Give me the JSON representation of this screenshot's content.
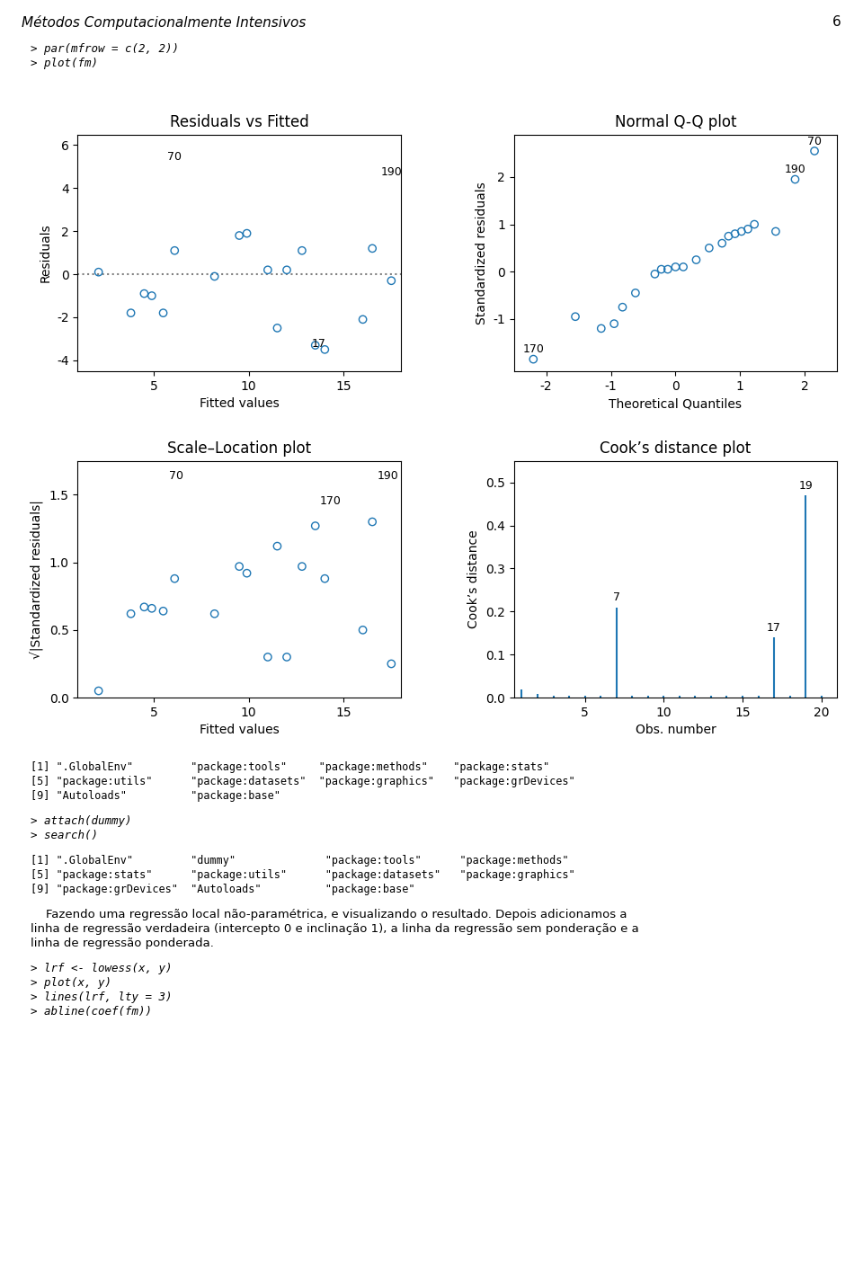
{
  "page": {
    "header_left": "Métodos Computacionalmente Intensivos",
    "header_right": "6",
    "text_above": [
      {
        "kind": "input",
        "lines": [
          "> par(mfrow = c(2, 2))",
          "> plot(fm)"
        ]
      }
    ],
    "text_below": [
      {
        "kind": "output",
        "lines": [
          "[1] \".GlobalEnv\"         \"package:tools\"     \"package:methods\"    \"package:stats\"",
          "[5] \"package:utils\"      \"package:datasets\"  \"package:graphics\"   \"package:grDevices\"",
          "[9] \"Autoloads\"          \"package:base\""
        ]
      },
      {
        "kind": "input",
        "lines": [
          "> attach(dummy)",
          "> search()"
        ]
      },
      {
        "kind": "output",
        "lines": [
          "[1] \".GlobalEnv\"         \"dummy\"              \"package:tools\"      \"package:methods\"",
          "[5] \"package:stats\"      \"package:utils\"      \"package:datasets\"   \"package:graphics\"",
          "[9] \"package:grDevices\"  \"Autoloads\"          \"package:base\""
        ]
      },
      {
        "kind": "paragraph",
        "lines": [
          "    Fazendo uma regressão local não-paramétrica, e visualizando o resultado. Depois adicionamos a",
          "linha de regressão verdadeira (intercepto 0 e inclinação 1), a linha da regressão sem ponderação e a",
          "linha de regressão ponderada."
        ]
      },
      {
        "kind": "input",
        "lines": [
          "> lrf <- lowess(x, y)",
          "> plot(x, y)",
          "> lines(lrf, lty = 3)",
          "> abline(coef(fm))"
        ]
      }
    ]
  },
  "chart_data": [
    {
      "type": "scatter",
      "title": "Residuals vs Fitted",
      "x_label": "Fitted values",
      "y_label": "Residuals",
      "x": [
        2.1,
        3.8,
        4.5,
        4.9,
        5.5,
        6.1,
        8.2,
        9.5,
        9.9,
        11.0,
        11.5,
        12.0,
        12.8,
        13.5,
        14.0,
        16.0,
        16.5,
        17.5
      ],
      "values": [
        0.1,
        -1.8,
        -0.9,
        -1.0,
        -1.8,
        1.1,
        -0.1,
        1.8,
        1.9,
        0.2,
        -2.5,
        0.2,
        1.1,
        -3.3,
        -3.5,
        -2.1,
        1.2,
        -0.3
      ],
      "xlim": [
        1,
        18
      ],
      "ylim": [
        -4.5,
        6.5
      ],
      "xticks": [
        5,
        10,
        15
      ],
      "yticks": [
        -4,
        -2,
        0,
        2,
        4,
        6
      ],
      "reference_line": {
        "y": 0
      },
      "annotations": [
        {
          "x": 6.1,
          "y": 5.0,
          "text": "70"
        },
        {
          "x": 17.5,
          "y": 4.3,
          "text": "190"
        },
        {
          "x": 13.7,
          "y": -3.7,
          "text": "17"
        }
      ]
    },
    {
      "type": "scatter",
      "title": "Normal Q-Q plot",
      "x_label": "Theoretical Quantiles",
      "y_label": "Standardized residuals",
      "x": [
        -2.2,
        -1.55,
        -1.15,
        -0.95,
        -0.82,
        -0.62,
        -0.32,
        -0.22,
        -0.12,
        0.0,
        0.12,
        0.32,
        0.52,
        0.72,
        0.82,
        0.92,
        1.02,
        1.12,
        1.22,
        1.55,
        1.85,
        2.15
      ],
      "values": [
        -1.85,
        -0.95,
        -1.2,
        -1.1,
        -0.75,
        -0.45,
        -0.05,
        0.05,
        0.05,
        0.1,
        0.1,
        0.25,
        0.5,
        0.6,
        0.75,
        0.8,
        0.85,
        0.9,
        1.0,
        0.85,
        1.95,
        2.55
      ],
      "xlim": [
        -2.5,
        2.5
      ],
      "ylim": [
        -2.1,
        2.9
      ],
      "xticks": [
        -2,
        -1,
        0,
        1,
        2
      ],
      "yticks": [
        -1,
        0,
        1,
        2
      ],
      "annotations": [
        {
          "x": -2.2,
          "y": -1.85,
          "text": "170"
        },
        {
          "x": 1.85,
          "y": 1.95,
          "text": "190"
        },
        {
          "x": 2.15,
          "y": 2.55,
          "text": "70"
        }
      ]
    },
    {
      "type": "scatter",
      "title": "Scale–Location plot",
      "x_label": "Fitted values",
      "y_label": "√|Standardized residuals|",
      "x": [
        2.1,
        3.8,
        4.5,
        4.9,
        5.5,
        6.1,
        8.2,
        9.5,
        9.9,
        11.0,
        11.5,
        12.0,
        12.8,
        13.5,
        14.0,
        16.0,
        16.5,
        17.5
      ],
      "values": [
        0.05,
        0.62,
        0.67,
        0.66,
        0.64,
        0.88,
        0.62,
        0.97,
        0.92,
        0.3,
        1.12,
        0.3,
        0.97,
        1.27,
        0.88,
        0.5,
        1.3,
        0.25
      ],
      "xlim": [
        1,
        18
      ],
      "ylim": [
        0.0,
        1.75
      ],
      "xticks": [
        5,
        10,
        15
      ],
      "yticks": [
        0.0,
        0.5,
        1.0,
        1.5
      ],
      "annotations": [
        {
          "x": 6.2,
          "y": 1.57,
          "text": "70"
        },
        {
          "x": 17.3,
          "y": 1.57,
          "text": "190"
        },
        {
          "x": 14.3,
          "y": 1.38,
          "text": "170"
        }
      ]
    },
    {
      "type": "stem",
      "title": "Cook’s distance plot",
      "x_label": "Obs. number",
      "y_label": "Cook’s distance",
      "x": [
        1,
        2,
        3,
        4,
        5,
        6,
        7,
        8,
        9,
        10,
        11,
        12,
        13,
        14,
        15,
        16,
        17,
        18,
        19,
        20
      ],
      "values": [
        0.018,
        0.008,
        0.004,
        0.004,
        0.004,
        0.004,
        0.21,
        0.004,
        0.004,
        0.004,
        0.004,
        0.004,
        0.004,
        0.004,
        0.004,
        0.004,
        0.14,
        0.004,
        0.47,
        0.004
      ],
      "xlim": [
        0.5,
        21
      ],
      "ylim": [
        0.0,
        0.55
      ],
      "xticks": [
        5,
        10,
        15,
        20
      ],
      "yticks": [
        0.0,
        0.1,
        0.2,
        0.3,
        0.4,
        0.5
      ],
      "annotations": [
        {
          "x": 7,
          "y": 0.21,
          "text": "7"
        },
        {
          "x": 17,
          "y": 0.14,
          "text": "17"
        },
        {
          "x": 19,
          "y": 0.47,
          "text": "19"
        }
      ]
    }
  ]
}
